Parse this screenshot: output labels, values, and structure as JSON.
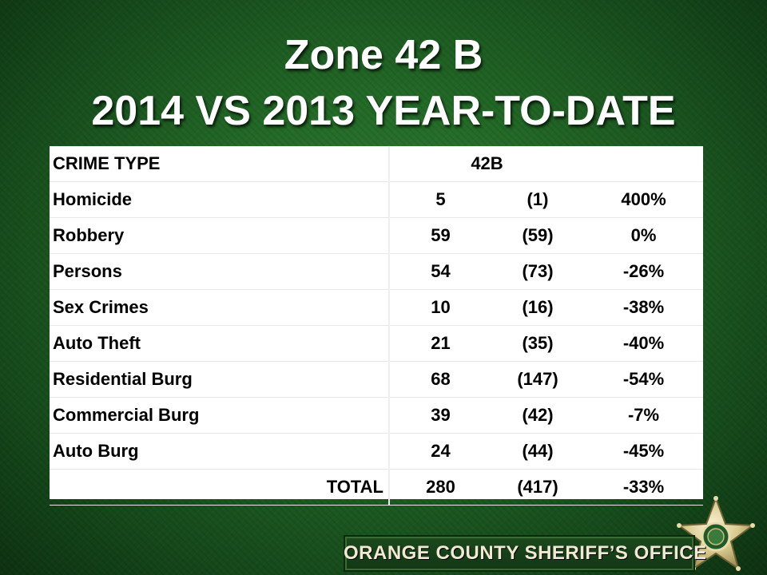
{
  "title": {
    "line1": "Zone 42 B",
    "line2": "2014 VS 2013 YEAR-TO-DATE"
  },
  "footer": {
    "agency": "ORANGE COUNTY SHERIFF’S OFFICE"
  },
  "chart_data": {
    "type": "table",
    "header": {
      "crime_type": "CRIME TYPE",
      "zone": "42B"
    },
    "rows": [
      {
        "type": "Homicide",
        "y2014": "5",
        "y2013": "(1)",
        "change": "400%"
      },
      {
        "type": "Robbery",
        "y2014": "59",
        "y2013": "(59)",
        "change": "0%"
      },
      {
        "type": "Persons",
        "y2014": "54",
        "y2013": "(73)",
        "change": "-26%"
      },
      {
        "type": "Sex Crimes",
        "y2014": "10",
        "y2013": "(16)",
        "change": "-38%"
      },
      {
        "type": "Auto Theft",
        "y2014": "21",
        "y2013": "(35)",
        "change": "-40%"
      },
      {
        "type": "Residential Burg",
        "y2014": "68",
        "y2013": "(147)",
        "change": "-54%"
      },
      {
        "type": "Commercial Burg",
        "y2014": "39",
        "y2013": "(42)",
        "change": "-7%"
      },
      {
        "type": "Auto Burg",
        "y2014": "24",
        "y2013": "(44)",
        "change": "-45%"
      }
    ],
    "total": {
      "label": "TOTAL",
      "y2014": "280",
      "y2013": "(417)",
      "change": "-33%"
    }
  },
  "colors": {
    "background": "#236a27",
    "title": "#ffffff",
    "table_bg": "#ffffff",
    "banner_text": "#f1ead2"
  },
  "icons": {
    "badge": "sheriff-star-icon"
  }
}
